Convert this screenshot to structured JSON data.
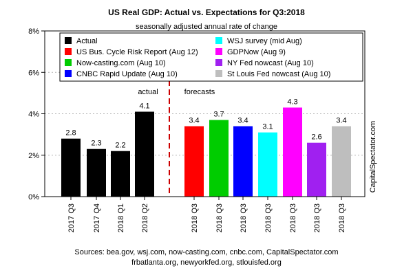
{
  "chart_data": {
    "type": "bar",
    "title": "US Real GDP: Actual vs. Expectations for Q3:2018",
    "subtitle": "seasonally adjusted annual rate of change",
    "ylim": [
      0,
      8
    ],
    "y_ticks": [
      "0%",
      "2%",
      "4%",
      "6%",
      "8%"
    ],
    "grid": true,
    "legend_position": "top",
    "actual_label": "actual",
    "forecasts_label": "forecasts",
    "side_label": "CapitalSpectator.com",
    "sources": [
      "Sources: bea.gov, wsj.com, now-casting.com, cnbc.com, CapitalSpectator.com",
      "frbatlanta.org, newyorkfed.org, stlouisfed.org"
    ],
    "bars": [
      {
        "category": "2017 Q3",
        "value": 2.8,
        "label": "2.8",
        "color": "#000000"
      },
      {
        "category": "2017 Q4",
        "value": 2.3,
        "label": "2.3",
        "color": "#000000"
      },
      {
        "category": "2018 Q1",
        "value": 2.2,
        "label": "2.2",
        "color": "#000000"
      },
      {
        "category": "2018 Q2",
        "value": 4.1,
        "label": "4.1",
        "color": "#000000"
      },
      {
        "category": "2018 Q3",
        "value": 3.4,
        "label": "3.4",
        "color": "#ff0000"
      },
      {
        "category": "2018 Q3",
        "value": 3.7,
        "label": "3.7",
        "color": "#00cc00"
      },
      {
        "category": "2018 Q3",
        "value": 3.4,
        "label": "3.4",
        "color": "#0000ff"
      },
      {
        "category": "2018 Q3",
        "value": 3.1,
        "label": "3.1",
        "color": "#00ffff"
      },
      {
        "category": "2018 Q3",
        "value": 4.3,
        "label": "4.3",
        "color": "#ff00ff"
      },
      {
        "category": "2018 Q3",
        "value": 2.6,
        "label": "2.6",
        "color": "#a020f0"
      },
      {
        "category": "2018 Q3",
        "value": 3.4,
        "label": "3.4",
        "color": "#bebebe"
      }
    ],
    "legend": [
      {
        "name": "Actual",
        "color": "#000000"
      },
      {
        "name": "US Bus. Cycle Risk Report (Aug 12)",
        "color": "#ff0000"
      },
      {
        "name": "Now-casting.com (Aug 10)",
        "color": "#00cc00"
      },
      {
        "name": "CNBC Rapid Update (Aug 10)",
        "color": "#0000ff"
      },
      {
        "name": "WSJ survey (mid Aug)",
        "color": "#00ffff"
      },
      {
        "name": "GDPNow (Aug 9)",
        "color": "#ff00ff"
      },
      {
        "name": "NY Fed nowcast (Aug 10)",
        "color": "#a020f0"
      },
      {
        "name": "St Louis Fed nowcast (Aug 10)",
        "color": "#bebebe"
      }
    ],
    "divider_color": "#cc0000"
  }
}
